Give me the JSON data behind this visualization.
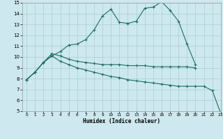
{
  "xlabel": "Humidex (Indice chaleur)",
  "xlim": [
    -0.5,
    23
  ],
  "ylim": [
    5,
    15
  ],
  "xticks": [
    0,
    1,
    2,
    3,
    4,
    5,
    6,
    7,
    8,
    9,
    10,
    11,
    12,
    13,
    14,
    15,
    16,
    17,
    18,
    19,
    20,
    21,
    22,
    23
  ],
  "yticks": [
    5,
    6,
    7,
    8,
    9,
    10,
    11,
    12,
    13,
    14,
    15
  ],
  "bg_color": "#cde8ee",
  "grid_color": "#aacdd6",
  "line_color": "#1a6e64",
  "line1": {
    "x": [
      0,
      1,
      2,
      3,
      4,
      5,
      6,
      7,
      8,
      9,
      10,
      11,
      12,
      13,
      14,
      15,
      16,
      17,
      18,
      19,
      20
    ],
    "y": [
      7.9,
      8.6,
      9.5,
      10.1,
      10.5,
      11.1,
      11.2,
      11.6,
      12.5,
      13.8,
      14.4,
      13.2,
      13.1,
      13.3,
      14.5,
      14.6,
      15.1,
      14.3,
      13.3,
      11.2,
      9.3
    ]
  },
  "line2": {
    "x": [
      0,
      1,
      2,
      3,
      4,
      5,
      6,
      7,
      8,
      9,
      10,
      11,
      12,
      13,
      14,
      15,
      16,
      17,
      18,
      19,
      20
    ],
    "y": [
      7.9,
      8.6,
      9.5,
      10.3,
      10.1,
      9.8,
      9.6,
      9.5,
      9.4,
      9.3,
      9.3,
      9.3,
      9.2,
      9.2,
      9.2,
      9.1,
      9.1,
      9.1,
      9.1,
      9.1,
      9.0
    ]
  },
  "line3": {
    "x": [
      0,
      1,
      2,
      3,
      4,
      5,
      6,
      7,
      8,
      9,
      10,
      11,
      12,
      13,
      14,
      15,
      16,
      17,
      18,
      19,
      20,
      21,
      22,
      23
    ],
    "y": [
      7.9,
      8.6,
      9.5,
      10.1,
      9.6,
      9.3,
      9.0,
      8.8,
      8.6,
      8.4,
      8.2,
      8.1,
      7.9,
      7.8,
      7.7,
      7.6,
      7.5,
      7.4,
      7.3,
      7.3,
      7.3,
      7.3,
      6.9,
      4.8
    ]
  }
}
